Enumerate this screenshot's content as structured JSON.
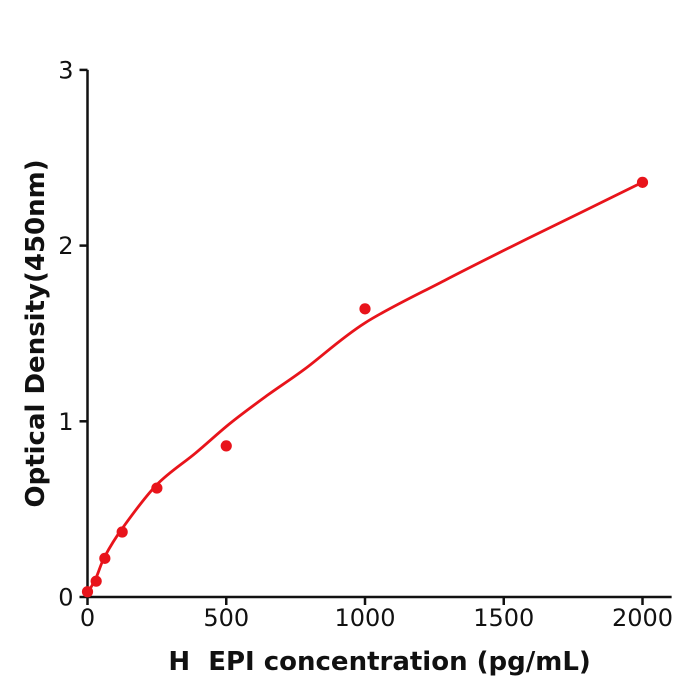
{
  "figure": {
    "background": "#ffffff",
    "description": "ELISA standard curve scatter plot with fitted line"
  },
  "chart_data": {
    "type": "scatter",
    "title": "",
    "xlabel": "H  EPI concentration (pg/mL)",
    "ylabel": "Optical Density(450nm)",
    "xlim": [
      0,
      2105
    ],
    "ylim": [
      0,
      3
    ],
    "xticks": [
      0,
      500,
      1000,
      1500,
      2000
    ],
    "yticks": [
      0,
      1,
      2,
      3
    ],
    "grid": false,
    "legend": "none",
    "fit_line": true,
    "series_color": "#e8141b",
    "axis_color": "#111111",
    "points": [
      {
        "x": 0,
        "y": 0.03
      },
      {
        "x": 31.25,
        "y": 0.09
      },
      {
        "x": 62.5,
        "y": 0.22
      },
      {
        "x": 125,
        "y": 0.37
      },
      {
        "x": 250,
        "y": 0.62
      },
      {
        "x": 500,
        "y": 0.86
      },
      {
        "x": 1000,
        "y": 1.64
      },
      {
        "x": 2000,
        "y": 2.36
      }
    ],
    "fit_curve_points": [
      [
        0,
        0.02
      ],
      [
        31,
        0.11
      ],
      [
        62,
        0.23
      ],
      [
        125,
        0.39
      ],
      [
        250,
        0.64
      ],
      [
        390,
        0.82
      ],
      [
        515,
        0.99
      ],
      [
        650,
        1.15
      ],
      [
        785,
        1.3
      ],
      [
        1000,
        1.56
      ],
      [
        1285,
        1.8
      ],
      [
        1535,
        2.0
      ],
      [
        1780,
        2.19
      ],
      [
        2000,
        2.36
      ]
    ]
  }
}
